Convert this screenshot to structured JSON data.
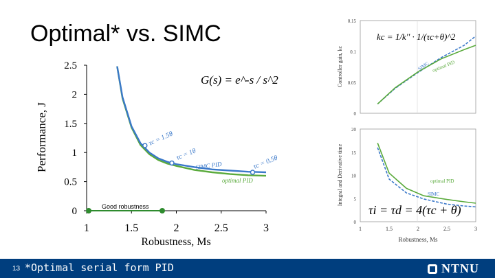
{
  "slide": {
    "title": "Optimal* vs. SIMC",
    "page_number": "13",
    "footnote": "*Optimal serial form PID",
    "logo_text": "NTNU",
    "accent_color": "#003e7e"
  },
  "chart_data": [
    {
      "type": "line",
      "xlabel": "Robustness, Ms",
      "ylabel": "Performance, J",
      "xlim": [
        1,
        3
      ],
      "ylim": [
        0,
        2.5
      ],
      "xticks": [
        "1",
        "1.5",
        "2",
        "2.5",
        "3"
      ],
      "yticks": [
        "0",
        "0.5",
        "1",
        "1.5",
        "2",
        "2.5"
      ],
      "formula": "G(s) = e^-s / s^2",
      "annotation": "Good robustness",
      "series": [
        {
          "name": "SIMC PID",
          "color": "#3a78c9",
          "x": [
            1.34,
            1.4,
            1.5,
            1.6,
            1.7,
            1.8,
            1.9,
            2.0,
            2.2,
            2.4,
            2.6,
            2.8,
            3.0
          ],
          "y": [
            2.48,
            1.95,
            1.45,
            1.16,
            1.0,
            0.9,
            0.84,
            0.8,
            0.75,
            0.71,
            0.69,
            0.67,
            0.66
          ]
        },
        {
          "name": "optimal PID",
          "color": "#5aaa3c",
          "x": [
            1.34,
            1.4,
            1.5,
            1.6,
            1.7,
            1.8,
            1.9,
            2.0,
            2.2,
            2.4,
            2.6,
            2.8,
            3.0
          ],
          "y": [
            2.48,
            1.93,
            1.43,
            1.13,
            0.97,
            0.87,
            0.81,
            0.77,
            0.7,
            0.66,
            0.63,
            0.61,
            0.6
          ]
        }
      ],
      "markers": [
        {
          "label": "τc = 1.5θ",
          "x": 1.65,
          "y": 1.12
        },
        {
          "label": "τc = 1θ",
          "x": 1.95,
          "y": 0.82
        },
        {
          "label": "τc = 0.5θ",
          "x": 2.85,
          "y": 0.66
        }
      ]
    },
    {
      "type": "line",
      "ylabel": "Controller gain, kc",
      "xlim": [
        1,
        3
      ],
      "ylim": [
        0,
        0.15
      ],
      "yticks": [
        "0",
        "0.05",
        "0.1",
        "0.15"
      ],
      "formula": "kc = 1/k'' · 1/(τc+θ)^2",
      "series": [
        {
          "name": "SIMC",
          "color": "#3a78c9",
          "x": [
            1.3,
            1.6,
            2.0,
            2.4,
            2.8,
            3.0
          ],
          "y": [
            0.015,
            0.04,
            0.066,
            0.09,
            0.11,
            0.125
          ]
        },
        {
          "name": "optimal PID",
          "color": "#5aaa3c",
          "x": [
            1.3,
            1.6,
            2.0,
            2.4,
            2.8,
            3.0
          ],
          "y": [
            0.015,
            0.041,
            0.067,
            0.088,
            0.103,
            0.11
          ]
        }
      ]
    },
    {
      "type": "line",
      "xlabel": "Robustness, Ms",
      "ylabel": "Integral and Derivative time",
      "xlim": [
        1,
        3
      ],
      "ylim": [
        0,
        20
      ],
      "xticks": [
        "1",
        "1.5",
        "2",
        "2.5",
        "3"
      ],
      "yticks": [
        "0",
        "5",
        "10",
        "15",
        "20"
      ],
      "formula": "τi = τd = 4(τc + θ)",
      "series": [
        {
          "name": "optimal PID",
          "color": "#5aaa3c",
          "x": [
            1.3,
            1.5,
            1.8,
            2.1,
            2.5,
            2.8,
            3.0
          ],
          "y": [
            17,
            10.5,
            7.2,
            5.6,
            4.8,
            4.3,
            4.0
          ]
        },
        {
          "name": "SIMC",
          "color": "#3a78c9",
          "x": [
            1.3,
            1.5,
            1.8,
            2.1,
            2.5,
            2.8,
            3.0
          ],
          "y": [
            16,
            9.2,
            6.2,
            4.9,
            3.8,
            3.4,
            3.2
          ]
        }
      ]
    }
  ]
}
